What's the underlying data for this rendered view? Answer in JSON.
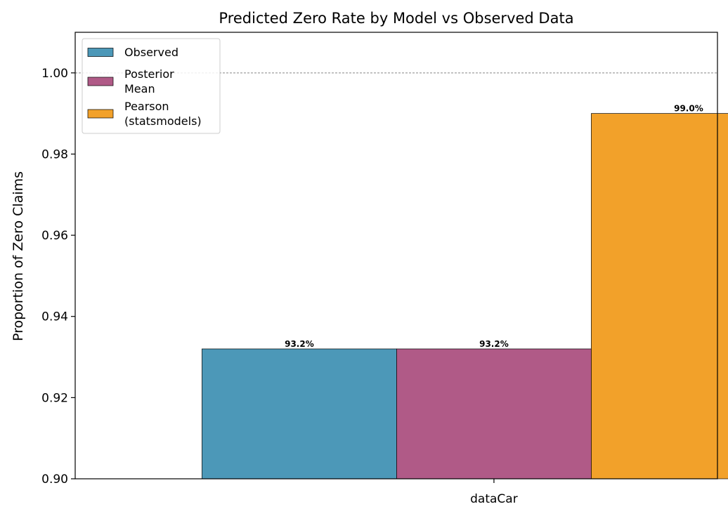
{
  "chart_data": {
    "type": "bar",
    "title": "Predicted Zero Rate by Model vs Observed Data",
    "xlabel": "",
    "ylabel": "Proportion of Zero Claims",
    "categories": [
      "dataCar"
    ],
    "series": [
      {
        "name": "Observed",
        "label_lines": [
          "Observed"
        ],
        "values": [
          0.932
        ],
        "labels": [
          "93.2%"
        ],
        "color": "#4c98b8"
      },
      {
        "name": "Posterior Mean",
        "label_lines": [
          "Posterior",
          "Mean"
        ],
        "values": [
          0.932
        ],
        "labels": [
          "93.2%"
        ],
        "color": "#b05a87"
      },
      {
        "name": "Pearson (statsmodels)",
        "label_lines": [
          "Pearson",
          "(statsmodels)"
        ],
        "values": [
          0.99
        ],
        "labels": [
          "99.0%"
        ],
        "color": "#f2a12a"
      }
    ],
    "ylim": [
      0.9,
      1.01
    ],
    "yticks": [
      "0.90",
      "0.92",
      "0.94",
      "0.96",
      "0.98",
      "1.00"
    ],
    "reference_line": {
      "y": 1.0,
      "style": "dashed",
      "color": "#888888"
    },
    "legend": "top-left",
    "grid": false
  }
}
